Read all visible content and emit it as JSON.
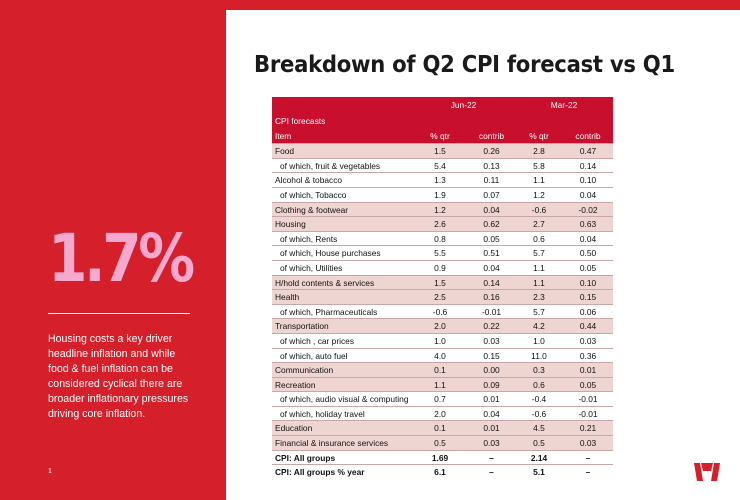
{
  "slide": {
    "title": "Breakdown of Q2 CPI forecast vs Q1",
    "page_number": "1",
    "colors": {
      "brand_red": "#d51f2a",
      "stat_pink": "#f6a9cf",
      "row_pink": "#eed5d2",
      "header_red": "#c8102e"
    },
    "logo_icon": "westpac-w-logo"
  },
  "sidebar": {
    "stat": "1.7%",
    "description": "Housing costs a key driver headline inflation and while food & fuel inflation can be considered cyclical there are broader inflationary pressures driving core inflation."
  },
  "table": {
    "period_headers": [
      "Jun-22",
      "Mar-22"
    ],
    "section_label": "CPI forecasts",
    "column_headers": [
      "Item",
      "% qtr",
      "contrib",
      "% qtr",
      "contrib"
    ],
    "rows": [
      {
        "item": "Food",
        "values": [
          "1.5",
          "0.26",
          "2.8",
          "0.47"
        ],
        "shade": "pink",
        "indent": false
      },
      {
        "item": "of which, fruit & vegetables",
        "values": [
          "5.4",
          "0.13",
          "5.8",
          "0.14"
        ],
        "shade": "white",
        "indent": true
      },
      {
        "item": "Alcohol & tobacco",
        "values": [
          "1.3",
          "0.11",
          "1.1",
          "0.10"
        ],
        "shade": "white",
        "indent": false
      },
      {
        "item": "of which, Tobacco",
        "values": [
          "1.9",
          "0.07",
          "1.2",
          "0.04"
        ],
        "shade": "white",
        "indent": true
      },
      {
        "item": "Clothing & footwear",
        "values": [
          "1.2",
          "0.04",
          "-0.6",
          "-0.02"
        ],
        "shade": "pink",
        "indent": false
      },
      {
        "item": "Housing",
        "values": [
          "2.6",
          "0.62",
          "2.7",
          "0.63"
        ],
        "shade": "pink",
        "indent": false
      },
      {
        "item": "of which, Rents",
        "values": [
          "0.8",
          "0.05",
          "0.6",
          "0.04"
        ],
        "shade": "white",
        "indent": true
      },
      {
        "item": "of which, House purchases",
        "values": [
          "5.5",
          "0.51",
          "5.7",
          "0.50"
        ],
        "shade": "white",
        "indent": true
      },
      {
        "item": "of which, Utilities",
        "values": [
          "0.9",
          "0.04",
          "1.1",
          "0.05"
        ],
        "shade": "white",
        "indent": true
      },
      {
        "item": "H/hold contents & services",
        "values": [
          "1.5",
          "0.14",
          "1.1",
          "0.10"
        ],
        "shade": "pink",
        "indent": false
      },
      {
        "item": "Health",
        "values": [
          "2.5",
          "0.16",
          "2.3",
          "0.15"
        ],
        "shade": "pink",
        "indent": false
      },
      {
        "item": "of which, Pharmaceuticals",
        "values": [
          "-0.6",
          "-0.01",
          "5.7",
          "0.06"
        ],
        "shade": "white",
        "indent": true
      },
      {
        "item": "Transportation",
        "values": [
          "2.0",
          "0.22",
          "4.2",
          "0.44"
        ],
        "shade": "pink",
        "indent": false
      },
      {
        "item": "of which , car prices",
        "values": [
          "1.0",
          "0.03",
          "1.0",
          "0.03"
        ],
        "shade": "white",
        "indent": true
      },
      {
        "item": "of which, auto fuel",
        "values": [
          "4.0",
          "0.15",
          "11.0",
          "0.36"
        ],
        "shade": "white",
        "indent": true
      },
      {
        "item": "Communication",
        "values": [
          "0.1",
          "0.00",
          "0.3",
          "0.01"
        ],
        "shade": "pink",
        "indent": false
      },
      {
        "item": "Recreation",
        "values": [
          "1.1",
          "0.09",
          "0.6",
          "0.05"
        ],
        "shade": "pink",
        "indent": false
      },
      {
        "item": "of which, audio visual & computing",
        "values": [
          "0.7",
          "0.01",
          "-0.4",
          "-0.01"
        ],
        "shade": "white",
        "indent": true
      },
      {
        "item": "of which, holiday travel",
        "values": [
          "2.0",
          "0.04",
          "-0.6",
          "-0.01"
        ],
        "shade": "white",
        "indent": true
      },
      {
        "item": "Education",
        "values": [
          "0.1",
          "0.01",
          "4.5",
          "0.21"
        ],
        "shade": "pink",
        "indent": false
      },
      {
        "item": "Financial & insurance services",
        "values": [
          "0.5",
          "0.03",
          "0.5",
          "0.03"
        ],
        "shade": "pink",
        "indent": false
      }
    ],
    "totals": [
      {
        "item": "CPI: All groups",
        "values": [
          "1.69",
          "–",
          "2.14",
          "–"
        ]
      },
      {
        "item": "CPI: All groups % year",
        "values": [
          "6.1",
          "–",
          "5.1",
          "–"
        ]
      }
    ]
  }
}
